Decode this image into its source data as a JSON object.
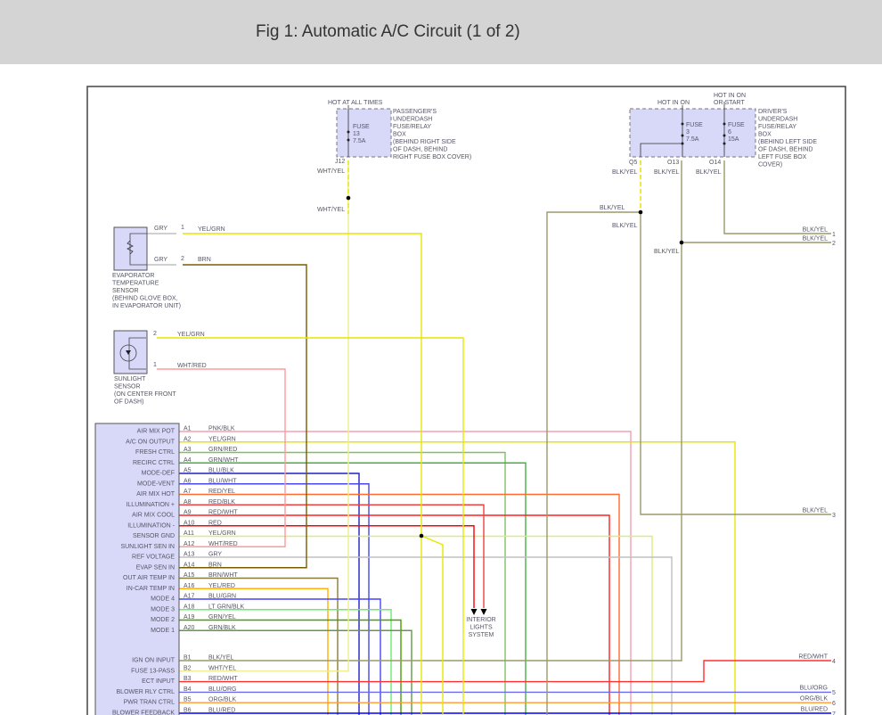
{
  "header": {
    "title": "Fig 1: Automatic A/C Circuit (1 of 2)"
  },
  "passenger_box": {
    "hot": "HOT AT ALL TIMES",
    "fuse": "FUSE",
    "fuse_no": "13",
    "amp": "7.5A",
    "connector": "J12",
    "desc": [
      "PASSENGER'S",
      "UNDERDASH",
      "FUSE/RELAY",
      "BOX",
      "(BEHIND RIGHT SIDE",
      "OF DASH, BEHIND",
      "RIGHT FUSE BOX COVER)"
    ],
    "wire1": "WHT/YEL",
    "wire2": "WHT/YEL"
  },
  "driver_box": {
    "hot1": "HOT IN ON",
    "hot2a": "HOT IN ON",
    "hot2b": "OR START",
    "fuse1": "FUSE",
    "fuse1_no": "3",
    "fuse1_amp": "7.5A",
    "fuse2": "FUSE",
    "fuse2_no": "6",
    "fuse2_amp": "15A",
    "connectors": [
      "Q5",
      "O13",
      "O14"
    ],
    "desc": [
      "DRIVER'S",
      "UNDERDASH",
      "FUSE/RELAY",
      "BOX",
      "(BEHIND LEFT SIDE",
      "OF DASH, BEHIND",
      "LEFT FUSE BOX",
      "COVER)"
    ],
    "wire_q5": "BLK/YEL",
    "wire_o13": "BLK/YEL",
    "wire_o14": "BLK/YEL",
    "wire_q5_left": "BLK/YEL",
    "wire_q5_down": "BLK/YEL",
    "wire_o13_down": "BLK/YEL"
  },
  "evap_sensor": {
    "desc": [
      "EVAPORATOR",
      "TEMPERATURE",
      "SENSOR",
      "(BEHIND GLOVE BOX,",
      "IN EVAPORATOR UNIT)"
    ],
    "pin1": "1",
    "pin2": "2",
    "lead1": "GRY",
    "lead2": "GRY",
    "wire1": "YEL/GRN",
    "wire2": "BRN"
  },
  "sunlight_sensor": {
    "desc": [
      "SUNLIGHT",
      "SENSOR",
      "(ON CENTER FRONT",
      "OF DASH)"
    ],
    "pin2": "2",
    "pin1": "1",
    "wire2": "YEL/GRN",
    "wire1": "WHT/RED"
  },
  "interior_lights": [
    "INTERIOR",
    "LIGHTS",
    "SYSTEM"
  ],
  "module_pins": [
    {
      "pin": "A1",
      "name": "AIR MIX POT",
      "wire": "PNK/BLK",
      "color": "#f4a0b0"
    },
    {
      "pin": "A2",
      "name": "A/C ON OUTPUT",
      "wire": "YEL/GRN",
      "color": "#e6e600"
    },
    {
      "pin": "A3",
      "name": "FRESH CTRL",
      "wire": "GRN/RED",
      "color": "#80c060"
    },
    {
      "pin": "A4",
      "name": "RECIRC CTRL",
      "wire": "GRN/WHT",
      "color": "#44b044"
    },
    {
      "pin": "A5",
      "name": "MODE-DEF",
      "wire": "BLU/BLK",
      "color": "#2020c0"
    },
    {
      "pin": "A6",
      "name": "MODE-VENT",
      "wire": "BLU/WHT",
      "color": "#4848f0"
    },
    {
      "pin": "A7",
      "name": "AIR MIX HOT",
      "wire": "RED/YEL",
      "color": "#ff6a30"
    },
    {
      "pin": "A8",
      "name": "ILLUMINATION +",
      "wire": "RED/BLK",
      "color": "#f04040"
    },
    {
      "pin": "A9",
      "name": "AIR MIX COOL",
      "wire": "RED/WHT",
      "color": "#ff2020"
    },
    {
      "pin": "A10",
      "name": "ILLUMINATION -",
      "wire": "RED",
      "color": "#ff0000"
    },
    {
      "pin": "A11",
      "name": "SENSOR GND",
      "wire": "YEL/GRN",
      "color": "#d8ee80"
    },
    {
      "pin": "A12",
      "name": "SUNLIGHT SEN IN",
      "wire": "WHT/RED",
      "color": "#ff9a9a"
    },
    {
      "pin": "A13",
      "name": "REF VOLTAGE",
      "wire": "GRY",
      "color": "#c0c0c0"
    },
    {
      "pin": "A14",
      "name": "EVAP SEN IN",
      "wire": "BRN",
      "color": "#7a5a00"
    },
    {
      "pin": "A15",
      "name": "OUT AIR TEMP IN",
      "wire": "BRN/WHT",
      "color": "#8a7a3a"
    },
    {
      "pin": "A16",
      "name": "IN-CAR TEMP IN",
      "wire": "YEL/RED",
      "color": "#ffb000"
    },
    {
      "pin": "A17",
      "name": "MODE 4",
      "wire": "BLU/GRN",
      "color": "#4444ff"
    },
    {
      "pin": "A18",
      "name": "MODE 3",
      "wire": "LT GRN/BLK",
      "color": "#66ee66"
    },
    {
      "pin": "A19",
      "name": "MODE 2",
      "wire": "GRN/YEL",
      "color": "#44a000"
    },
    {
      "pin": "A20",
      "name": "MODE 1",
      "wire": "GRN/BLK",
      "color": "#609a48"
    },
    {
      "pin": "B1",
      "name": "IGN ON INPUT",
      "wire": "BLK/YEL",
      "color": "#9a9a6a"
    },
    {
      "pin": "B2",
      "name": "FUSE 13-PASS",
      "wire": "WHT/YEL",
      "color": "#eeee99"
    },
    {
      "pin": "B3",
      "name": "ECT INPUT",
      "wire": "RED/WHT",
      "color": "#ff3030"
    },
    {
      "pin": "B4",
      "name": "BLOWER RLY CTRL",
      "wire": "BLU/ORG",
      "color": "#6a6aee"
    },
    {
      "pin": "B5",
      "name": "PWR TRAN CTRL",
      "wire": "ORG/BLK",
      "color": "#ff9a30"
    },
    {
      "pin": "B6",
      "name": "BLOWER FEEDBACK",
      "wire": "BLU/RED",
      "color": "#0000ff"
    }
  ],
  "right_terminals": [
    {
      "num": "1",
      "wire": "BLK/YEL"
    },
    {
      "num": "2",
      "wire": "BLK/YEL"
    },
    {
      "num": "3",
      "wire": "BLK/YEL"
    },
    {
      "num": "4",
      "wire": "RED/WHT"
    },
    {
      "num": "5",
      "wire": "BLU/ORG"
    },
    {
      "num": "6",
      "wire": "ORG/BLK"
    },
    {
      "num": "7",
      "wire": "BLU/RED"
    }
  ],
  "colors": {
    "box_fill": "#d8d8f8",
    "header_bg": "#d4d4d4",
    "blk_yel": "#9a9a6a",
    "wht_yel": "#eeee88",
    "yel_grn": "#e6e600",
    "gry": "#c0c0c0",
    "brn": "#7a5a00",
    "wht_red": "#ff9a9a"
  }
}
